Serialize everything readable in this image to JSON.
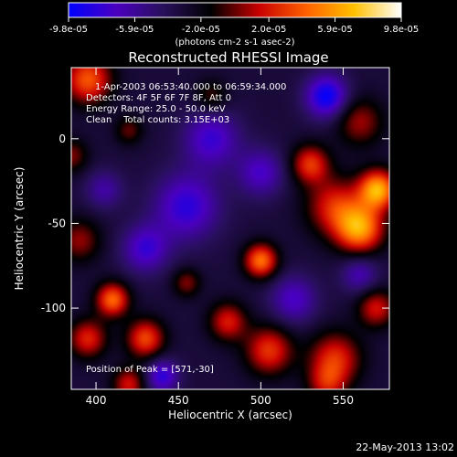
{
  "chart_data": {
    "type": "heatmap",
    "title": "Reconstructed RHESSI Image",
    "xlabel": "Heliocentric X (arcsec)",
    "ylabel": "Heliocentric Y (arcsec)",
    "xlim": [
      385,
      578
    ],
    "ylim": [
      -148,
      42
    ],
    "x_ticks": [
      {
        "value": 400,
        "label": "400"
      },
      {
        "value": 450,
        "label": "450"
      },
      {
        "value": 500,
        "label": "500"
      },
      {
        "value": 550,
        "label": "550"
      }
    ],
    "y_ticks": [
      {
        "value": 0,
        "label": "0"
      },
      {
        "value": -50,
        "label": "-50"
      },
      {
        "value": -100,
        "label": "-100"
      }
    ],
    "colorbar": {
      "ticks": [
        {
          "value": -9.8e-05,
          "label": "-9.8e-05"
        },
        {
          "value": -5.9e-05,
          "label": "-5.9e-05"
        },
        {
          "value": -2e-05,
          "label": "-2.0e-05"
        },
        {
          "value": 2e-05,
          "label": "2.0e-05"
        },
        {
          "value": 5.9e-05,
          "label": "5.9e-05"
        },
        {
          "value": 9.8e-05,
          "label": "9.8e-05"
        }
      ],
      "range": [
        -9.8e-05,
        9.8e-05
      ],
      "unit_label": "(photons cm-2 s-1 asec-2)",
      "colors": [
        "#0000ff",
        "#4a00c0",
        "#28105a",
        "#000000",
        "#c80000",
        "#ff6000",
        "#ffc000",
        "#ffffff"
      ]
    },
    "info_lines": [
      "1-Apr-2003 06:53:40.000 to 06:59:34.000",
      "Detectors: 4F 5F 6F 7F 8F, Att 0",
      "Energy Range: 25.0 - 50.0 keV",
      "Clean    Total counts: 3.15E+03"
    ],
    "peak_annotation": "Position of Peak = [571,-30]",
    "peak": {
      "x": 571,
      "y": -30
    },
    "sources": [
      {
        "x": 571,
        "y": -30,
        "amp": 9.6e-05,
        "sigma": 8
      },
      {
        "x": 560,
        "y": -53,
        "amp": 8.8e-05,
        "sigma": 10
      },
      {
        "x": 545,
        "y": -40,
        "amp": 5.5e-05,
        "sigma": 12
      },
      {
        "x": 530,
        "y": -15,
        "amp": 6e-05,
        "sigma": 8
      },
      {
        "x": 560,
        "y": 10,
        "amp": 4e-05,
        "sigma": 10
      },
      {
        "x": 500,
        "y": -72,
        "amp": 7.8e-05,
        "sigma": 7
      },
      {
        "x": 410,
        "y": -95,
        "amp": 7.5e-05,
        "sigma": 7
      },
      {
        "x": 395,
        "y": -118,
        "amp": 5.5e-05,
        "sigma": 8
      },
      {
        "x": 430,
        "y": -118,
        "amp": 6.5e-05,
        "sigma": 8
      },
      {
        "x": 480,
        "y": -108,
        "amp": 5.2e-05,
        "sigma": 8
      },
      {
        "x": 505,
        "y": -125,
        "amp": 6e-05,
        "sigma": 10
      },
      {
        "x": 545,
        "y": -130,
        "amp": 5.8e-05,
        "sigma": 11
      },
      {
        "x": 570,
        "y": -100,
        "amp": 5e-05,
        "sigma": 8
      },
      {
        "x": 390,
        "y": -60,
        "amp": 3.8e-05,
        "sigma": 9
      },
      {
        "x": 395,
        "y": 35,
        "amp": 7e-05,
        "sigma": 10
      },
      {
        "x": 385,
        "y": -10,
        "amp": 3.5e-05,
        "sigma": 7
      },
      {
        "x": 420,
        "y": 5,
        "amp": 3e-05,
        "sigma": 6
      },
      {
        "x": 455,
        "y": -85,
        "amp": 3.5e-05,
        "sigma": 6
      },
      {
        "x": 470,
        "y": 25,
        "amp": 2.8e-05,
        "sigma": 7
      },
      {
        "x": 540,
        "y": -145,
        "amp": 4e-05,
        "sigma": 8
      },
      {
        "x": 420,
        "y": -145,
        "amp": 5e-05,
        "sigma": 7
      },
      {
        "x": 455,
        "y": -40,
        "amp": -5e-05,
        "sigma": 14
      },
      {
        "x": 470,
        "y": 0,
        "amp": -4.5e-05,
        "sigma": 12
      },
      {
        "x": 540,
        "y": 25,
        "amp": -6.5e-05,
        "sigma": 9
      },
      {
        "x": 500,
        "y": -20,
        "amp": -4e-05,
        "sigma": 10
      },
      {
        "x": 430,
        "y": -65,
        "amp": -4.5e-05,
        "sigma": 10
      },
      {
        "x": 520,
        "y": -95,
        "amp": -4e-05,
        "sigma": 10
      },
      {
        "x": 440,
        "y": -140,
        "amp": -5e-05,
        "sigma": 7
      },
      {
        "x": 560,
        "y": -80,
        "amp": -3.5e-05,
        "sigma": 8
      },
      {
        "x": 405,
        "y": -30,
        "amp": -3e-05,
        "sigma": 8
      }
    ]
  },
  "footer": {
    "date": "22-May-2013 13:02"
  }
}
